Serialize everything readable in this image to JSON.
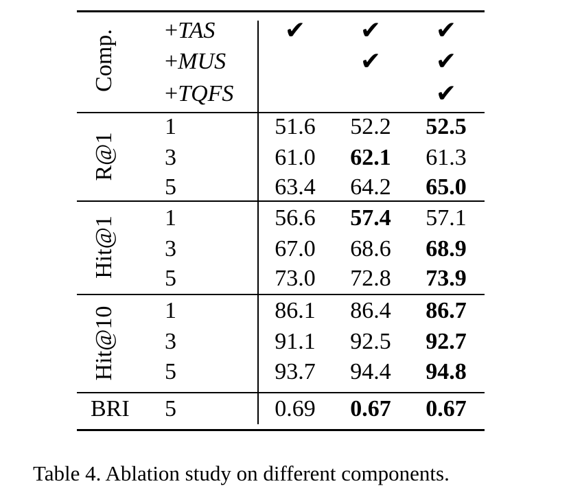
{
  "table": {
    "comp_label": "Comp.",
    "components": [
      {
        "prefix": "+",
        "name": "TAS"
      },
      {
        "prefix": "+",
        "name": "MUS"
      },
      {
        "prefix": "+",
        "name": "TQFS"
      }
    ],
    "check_glyph": "✔",
    "check_pattern": [
      [
        true,
        true,
        true
      ],
      [
        false,
        true,
        true
      ],
      [
        false,
        false,
        true
      ]
    ],
    "groups": [
      {
        "label": "R@1",
        "rows": [
          {
            "k": "1",
            "values": [
              "51.6",
              "52.2",
              "52.5"
            ],
            "bold": [
              false,
              false,
              true
            ]
          },
          {
            "k": "3",
            "values": [
              "61.0",
              "62.1",
              "61.3"
            ],
            "bold": [
              false,
              true,
              false
            ]
          },
          {
            "k": "5",
            "values": [
              "63.4",
              "64.2",
              "65.0"
            ],
            "bold": [
              false,
              false,
              true
            ]
          }
        ]
      },
      {
        "label": "Hit@1",
        "rows": [
          {
            "k": "1",
            "values": [
              "56.6",
              "57.4",
              "57.1"
            ],
            "bold": [
              false,
              true,
              false
            ]
          },
          {
            "k": "3",
            "values": [
              "67.0",
              "68.6",
              "68.9"
            ],
            "bold": [
              false,
              false,
              true
            ]
          },
          {
            "k": "5",
            "values": [
              "73.0",
              "72.8",
              "73.9"
            ],
            "bold": [
              false,
              false,
              true
            ]
          }
        ]
      },
      {
        "label": "Hit@10",
        "rows": [
          {
            "k": "1",
            "values": [
              "86.1",
              "86.4",
              "86.7"
            ],
            "bold": [
              false,
              false,
              true
            ]
          },
          {
            "k": "3",
            "values": [
              "91.1",
              "92.5",
              "92.7"
            ],
            "bold": [
              false,
              false,
              true
            ]
          },
          {
            "k": "5",
            "values": [
              "93.7",
              "94.4",
              "94.8"
            ],
            "bold": [
              false,
              false,
              true
            ]
          }
        ]
      }
    ],
    "bri": {
      "label": "BRI",
      "k": "5",
      "values": [
        "0.69",
        "0.67",
        "0.67"
      ],
      "bold": [
        false,
        true,
        true
      ]
    }
  },
  "caption": "Table 4. Ablation study on different components."
}
